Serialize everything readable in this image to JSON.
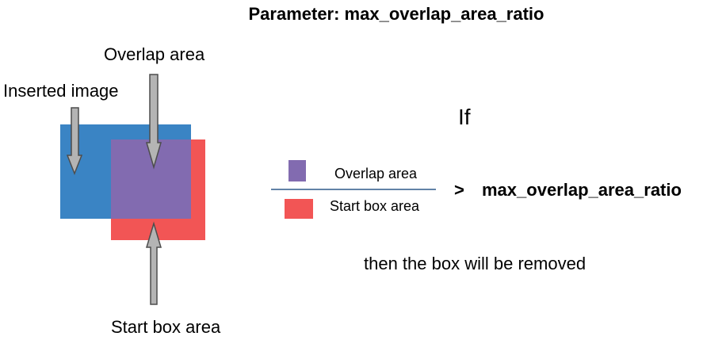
{
  "title": "Parameter: max_overlap_area_ratio",
  "labels": {
    "overlap_area": "Overlap area",
    "inserted_image": "Inserted image",
    "start_box_area": "Start box area"
  },
  "condition": {
    "if": "If",
    "numerator": "Overlap area",
    "denominator": "Start box area",
    "operator": ">",
    "parameter": "max_overlap_area_ratio",
    "result": "then the box will be removed"
  },
  "colors": {
    "inserted_image": "#3a84c4",
    "start_box": "#f25555",
    "overlap": "#826bb0",
    "arrow_fill": "#b4b4b4",
    "fraction_line": "#2f5a8a"
  }
}
